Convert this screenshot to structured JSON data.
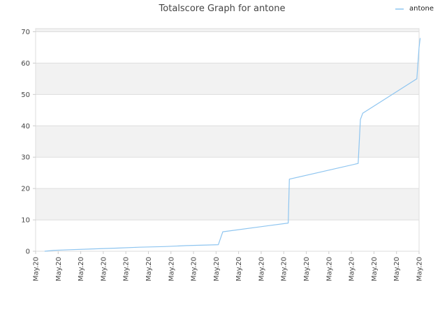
{
  "chart_data": {
    "type": "line",
    "title": "Totalscore Graph for antone",
    "xlabel": "",
    "ylabel": "",
    "ylim": [
      0,
      71
    ],
    "yticks": [
      0,
      10,
      20,
      30,
      40,
      50,
      60,
      70
    ],
    "xtick_labels": [
      "May.20",
      "May.20",
      "May.20",
      "May.20",
      "May.20",
      "May.20",
      "May.20",
      "May.20",
      "May.20",
      "May.20",
      "May.20",
      "May.20",
      "May.20",
      "May.20",
      "May.20",
      "May.20",
      "May.20",
      "May.20"
    ],
    "grid": true,
    "legend": {
      "position": "top-right",
      "entries": [
        "antone"
      ]
    },
    "colors": {
      "series": "#8ec5f0",
      "band": "#f2f2f2",
      "grid": "#dddddd",
      "axis": "#cccccc"
    },
    "series": [
      {
        "name": "antone",
        "x": [
          0.4,
          0.8,
          1.5,
          2.8,
          3.6,
          4.6,
          5.7,
          6.7,
          7.7,
          8.1,
          8.3,
          11.2,
          11.25,
          14.3,
          14.4,
          14.5,
          16.9,
          16.95,
          17.0,
          17.05
        ],
        "y": [
          0,
          0.3,
          0.5,
          0.8,
          1.0,
          1.3,
          1.5,
          1.8,
          2.0,
          2.1,
          6.2,
          9.0,
          23.0,
          28.0,
          42.0,
          44.0,
          55.0,
          60.0,
          65.0,
          68.0
        ]
      }
    ]
  }
}
